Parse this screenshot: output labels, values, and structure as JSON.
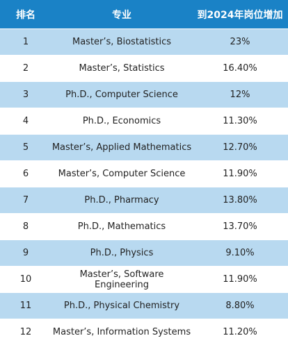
{
  "table": {
    "headers": {
      "rank": "排名",
      "major": "专业",
      "growth": "到2024年岗位增加"
    },
    "rows": [
      {
        "rank": "1",
        "major": "Master’s, Biostatistics",
        "growth": "23%"
      },
      {
        "rank": "2",
        "major": "Master’s, Statistics",
        "growth": "16.40%"
      },
      {
        "rank": "3",
        "major": "Ph.D., Computer Science",
        "growth": "12%"
      },
      {
        "rank": "4",
        "major": "Ph.D., Economics",
        "growth": "11.30%"
      },
      {
        "rank": "5",
        "major": "Master’s, Applied Mathematics",
        "growth": "12.70%"
      },
      {
        "rank": "6",
        "major": "Master’s, Computer Science",
        "growth": "11.90%"
      },
      {
        "rank": "7",
        "major": "Ph.D., Pharmacy",
        "growth": "13.80%"
      },
      {
        "rank": "8",
        "major": "Ph.D., Mathematics",
        "growth": "13.70%"
      },
      {
        "rank": "9",
        "major": "Ph.D., Physics",
        "growth": "9.10%"
      },
      {
        "rank": "10",
        "major": "Master’s, Software Engineering",
        "growth": "11.90%"
      },
      {
        "rank": "11",
        "major": "Ph.D., Physical Chemistry",
        "growth": "8.80%"
      },
      {
        "rank": "12",
        "major": "Master’s, Information Systems",
        "growth": "11.20%"
      }
    ]
  },
  "colors": {
    "header_bg": "#1a82c6",
    "stripe_bg": "#b8d9f0",
    "row_bg": "#ffffff"
  }
}
